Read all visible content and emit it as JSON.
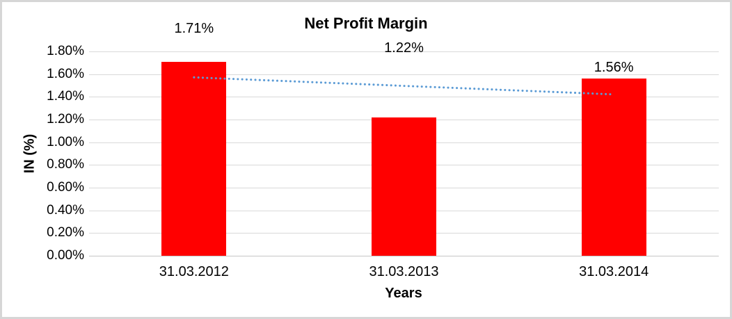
{
  "frame": {
    "background": "#ffffff",
    "border_color": "#d6d6d6"
  },
  "chart_data": {
    "type": "bar",
    "title": "Net Profit Margin",
    "xlabel": "Years",
    "ylabel": "IN (%)",
    "categories": [
      "31.03.2012",
      "31.03.2013",
      "31.03.2014"
    ],
    "values": [
      1.71,
      1.22,
      1.56
    ],
    "data_labels": [
      "1.71%",
      "1.22%",
      "1.56%"
    ],
    "y_ticks": [
      "1.80%",
      "1.60%",
      "1.40%",
      "1.20%",
      "1.00%",
      "0.80%",
      "0.60%",
      "0.40%",
      "0.20%",
      "0.00%"
    ],
    "ylim": [
      0,
      1.8
    ],
    "grid": true,
    "legend_position": "none",
    "bar_color": "#ff0000",
    "gridline_color": "#d9d9d9",
    "text_color": "#000000",
    "trendline": {
      "type": "linear",
      "style": "dotted",
      "color": "#5b9bd5"
    }
  }
}
